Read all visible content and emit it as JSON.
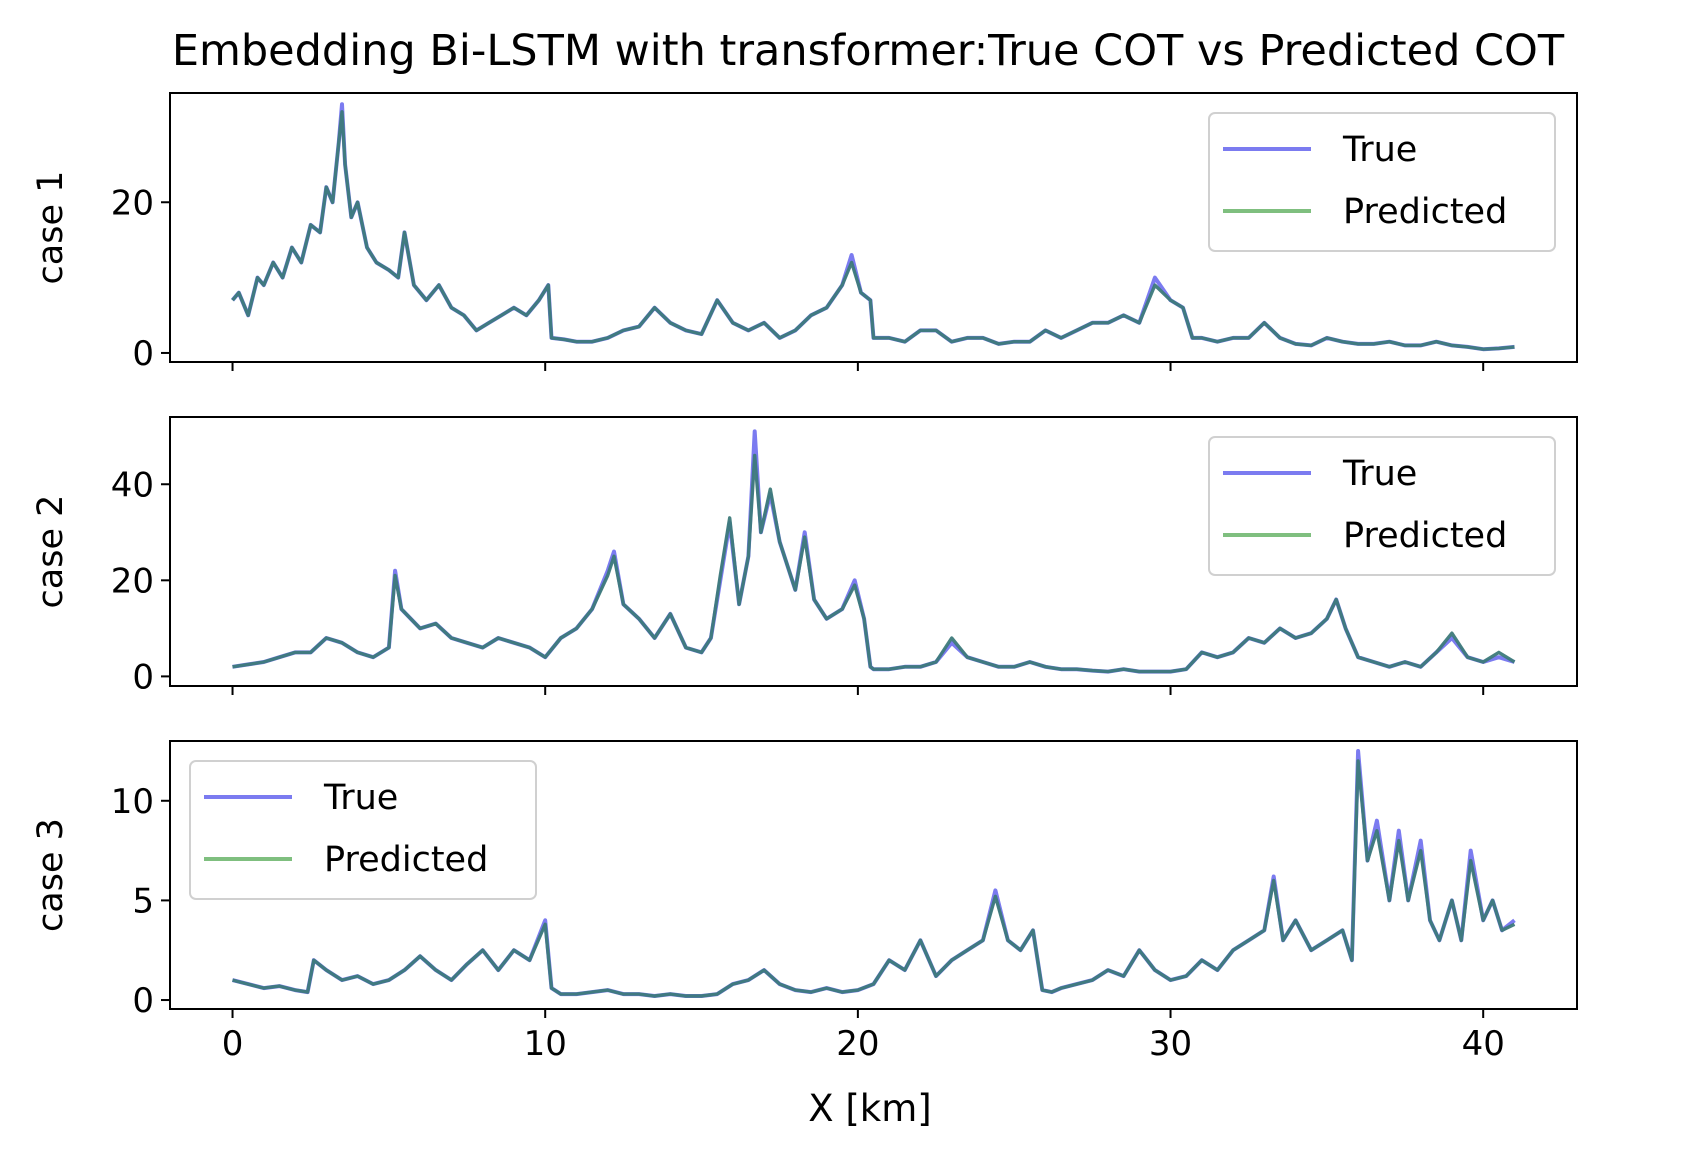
{
  "figure": {
    "title": "Embedding Bi-LSTM with transformer:True COT vs Predicted COT",
    "xlabel": "X [km]",
    "colors": {
      "true": "#7b7bf0",
      "predicted": "#7fbf7f",
      "overlap": "#3d7a7a"
    }
  },
  "chart_data": [
    {
      "type": "line",
      "ylabel": "case 1",
      "xlim": [
        -2,
        43
      ],
      "ylim": [
        -1.2,
        34.5
      ],
      "xticks": [
        0,
        10,
        20,
        30,
        40
      ],
      "yticks": [
        0,
        20
      ],
      "legend": {
        "position": "top-right",
        "entries": [
          "True",
          "Predicted"
        ]
      },
      "x": [
        0,
        0.2,
        0.5,
        0.8,
        1.0,
        1.3,
        1.6,
        1.9,
        2.2,
        2.5,
        2.8,
        3.0,
        3.2,
        3.4,
        3.5,
        3.6,
        3.8,
        4.0,
        4.3,
        4.6,
        5.0,
        5.3,
        5.5,
        5.8,
        6.2,
        6.6,
        7.0,
        7.4,
        7.8,
        8.2,
        8.6,
        9.0,
        9.4,
        9.8,
        10.1,
        10.2,
        10.6,
        11.0,
        11.5,
        12.0,
        12.5,
        13.0,
        13.5,
        14.0,
        14.5,
        15.0,
        15.5,
        16.0,
        16.5,
        17.0,
        17.5,
        18.0,
        18.5,
        19.0,
        19.5,
        19.8,
        20.1,
        20.4,
        20.5,
        21.0,
        21.5,
        22.0,
        22.5,
        23.0,
        23.5,
        24.0,
        24.5,
        25.0,
        25.5,
        26.0,
        26.5,
        27.0,
        27.5,
        28.0,
        28.5,
        29.0,
        29.5,
        30.0,
        30.4,
        30.7,
        31.0,
        31.5,
        32.0,
        32.5,
        33.0,
        33.5,
        34.0,
        34.5,
        35.0,
        35.5,
        36.0,
        36.5,
        37.0,
        37.5,
        38.0,
        38.5,
        39.0,
        39.5,
        40.0,
        40.5,
        41.0
      ],
      "series": [
        {
          "name": "True",
          "values": [
            7,
            8,
            5,
            10,
            9,
            12,
            10,
            14,
            12,
            17,
            16,
            22,
            20,
            28,
            33,
            25,
            18,
            20,
            14,
            12,
            11,
            10,
            16,
            9,
            7,
            9,
            6,
            5,
            3,
            4,
            5,
            6,
            5,
            7,
            9,
            2,
            1.8,
            1.5,
            1.5,
            2,
            3,
            3.5,
            6,
            4,
            3,
            2.5,
            7,
            4,
            3,
            4,
            2,
            3,
            5,
            6,
            9,
            13,
            8,
            7,
            2,
            2,
            1.5,
            3,
            3,
            1.5,
            2,
            2,
            1.2,
            1.5,
            1.5,
            3,
            2,
            3,
            4,
            4,
            5,
            4,
            10,
            7,
            6,
            2,
            2,
            1.5,
            2,
            2,
            4,
            2,
            1.2,
            1,
            2,
            1.5,
            1.2,
            1.2,
            1.5,
            1,
            1,
            1.5,
            1,
            0.8,
            0.5,
            0.6,
            0.8
          ]
        },
        {
          "name": "Predicted",
          "values": [
            7,
            8,
            5,
            10,
            9,
            12,
            10,
            14,
            12,
            17,
            16,
            22,
            20,
            28,
            32,
            25,
            18,
            20,
            14,
            12,
            11,
            10,
            16,
            9,
            7,
            9,
            6,
            5,
            3,
            4,
            5,
            6,
            5,
            7,
            9,
            2,
            1.8,
            1.5,
            1.5,
            2,
            3,
            3.5,
            6,
            4,
            3,
            2.5,
            7,
            4,
            3,
            4,
            2,
            3,
            5,
            6,
            9,
            12,
            8,
            7,
            2,
            2,
            1.5,
            3,
            3,
            1.5,
            2,
            2,
            1.2,
            1.5,
            1.5,
            3,
            2,
            3,
            4,
            4,
            5,
            4,
            9,
            7,
            6,
            2,
            2,
            1.5,
            2,
            2,
            4,
            2,
            1.2,
            1,
            2,
            1.5,
            1.2,
            1.2,
            1.5,
            1,
            1,
            1.5,
            1,
            0.8,
            0.5,
            0.6,
            0.8
          ]
        }
      ]
    },
    {
      "type": "line",
      "ylabel": "case 2",
      "xlim": [
        -2,
        43
      ],
      "ylim": [
        -2.0,
        54.0
      ],
      "xticks": [
        0,
        10,
        20,
        30,
        40
      ],
      "yticks": [
        0,
        20,
        40
      ],
      "legend": {
        "position": "top-right",
        "entries": [
          "True",
          "Predicted"
        ]
      },
      "x": [
        0,
        0.5,
        1.0,
        1.5,
        2.0,
        2.5,
        3.0,
        3.5,
        4.0,
        4.5,
        5.0,
        5.2,
        5.4,
        5.7,
        6.0,
        6.5,
        7.0,
        7.5,
        8.0,
        8.5,
        9.0,
        9.5,
        10.0,
        10.5,
        11.0,
        11.5,
        12.0,
        12.2,
        12.5,
        13.0,
        13.5,
        14.0,
        14.5,
        15.0,
        15.3,
        15.6,
        15.9,
        16.2,
        16.5,
        16.7,
        16.9,
        17.2,
        17.5,
        17.8,
        18.0,
        18.3,
        18.6,
        19.0,
        19.5,
        19.9,
        20.2,
        20.4,
        20.5,
        21.0,
        21.5,
        22.0,
        22.5,
        23.0,
        23.5,
        24.0,
        24.5,
        25.0,
        25.5,
        26.0,
        26.5,
        27.0,
        27.5,
        28.0,
        28.5,
        29.0,
        29.5,
        30.0,
        30.5,
        31.0,
        31.5,
        32.0,
        32.5,
        33.0,
        33.5,
        34.0,
        34.5,
        35.0,
        35.3,
        35.6,
        36.0,
        36.5,
        37.0,
        37.5,
        38.0,
        38.5,
        39.0,
        39.5,
        40.0,
        40.5,
        41.0
      ],
      "series": [
        {
          "name": "True",
          "values": [
            2,
            2.5,
            3,
            4,
            5,
            5,
            8,
            7,
            5,
            4,
            6,
            22,
            14,
            12,
            10,
            11,
            8,
            7,
            6,
            8,
            7,
            6,
            4,
            8,
            10,
            14,
            22,
            26,
            15,
            12,
            8,
            13,
            6,
            5,
            8,
            20,
            32,
            15,
            25,
            51,
            30,
            38,
            28,
            22,
            18,
            30,
            16,
            12,
            14,
            20,
            12,
            2,
            1.5,
            1.5,
            2,
            2,
            3,
            7,
            4,
            3,
            2,
            2,
            3,
            2,
            1.5,
            1.5,
            1.2,
            1,
            1.5,
            1,
            1,
            1,
            1.5,
            5,
            4,
            5,
            8,
            7,
            10,
            8,
            9,
            12,
            16,
            10,
            4,
            3,
            2,
            3,
            2,
            5,
            8,
            4,
            3,
            4,
            3
          ]
        },
        {
          "name": "Predicted",
          "values": [
            2,
            2.5,
            3,
            4,
            5,
            5,
            8,
            7,
            5,
            4,
            6,
            21,
            14,
            12,
            10,
            11,
            8,
            7,
            6,
            8,
            7,
            6,
            4,
            8,
            10,
            14,
            21,
            25,
            15,
            12,
            8,
            13,
            6,
            5,
            8,
            21,
            33,
            15,
            25,
            46,
            30,
            39,
            28,
            22,
            18,
            29,
            16,
            12,
            14,
            19,
            12,
            2,
            1.5,
            1.5,
            2,
            2,
            3,
            8,
            4,
            3,
            2,
            2,
            3,
            2,
            1.5,
            1.5,
            1.2,
            1,
            1.5,
            1,
            1,
            1,
            1.5,
            5,
            4,
            5,
            8,
            7,
            10,
            8,
            9,
            12,
            16,
            10,
            4,
            3,
            2,
            3,
            2,
            5,
            9,
            4,
            3,
            5,
            3
          ]
        }
      ]
    },
    {
      "type": "line",
      "ylabel": "case 3",
      "xlim": [
        -2,
        43
      ],
      "ylim": [
        -0.45,
        13.0
      ],
      "xticks": [
        0,
        10,
        20,
        30,
        40
      ],
      "yticks": [
        0,
        5,
        10
      ],
      "legend": {
        "position": "top-left",
        "entries": [
          "True",
          "Predicted"
        ]
      },
      "x": [
        0,
        0.5,
        1.0,
        1.5,
        2.0,
        2.4,
        2.6,
        3.0,
        3.5,
        4.0,
        4.5,
        5.0,
        5.5,
        6.0,
        6.5,
        7.0,
        7.5,
        8.0,
        8.5,
        9.0,
        9.5,
        10.0,
        10.2,
        10.5,
        11.0,
        11.5,
        12.0,
        12.5,
        13.0,
        13.5,
        14.0,
        14.5,
        15.0,
        15.5,
        16.0,
        16.5,
        17.0,
        17.5,
        18.0,
        18.5,
        19.0,
        19.5,
        20.0,
        20.5,
        21.0,
        21.5,
        22.0,
        22.5,
        23.0,
        23.5,
        24.0,
        24.4,
        24.8,
        25.2,
        25.6,
        25.9,
        26.2,
        26.5,
        27.0,
        27.5,
        28.0,
        28.5,
        29.0,
        29.5,
        30.0,
        30.5,
        31.0,
        31.5,
        32.0,
        32.5,
        33.0,
        33.3,
        33.6,
        34.0,
        34.5,
        35.0,
        35.5,
        35.8,
        36.0,
        36.3,
        36.6,
        37.0,
        37.3,
        37.6,
        38.0,
        38.3,
        38.6,
        39.0,
        39.3,
        39.6,
        40.0,
        40.3,
        40.6,
        41.0
      ],
      "series": [
        {
          "name": "True",
          "values": [
            1,
            0.8,
            0.6,
            0.7,
            0.5,
            0.4,
            2,
            1.5,
            1,
            1.2,
            0.8,
            1,
            1.5,
            2.2,
            1.5,
            1,
            1.8,
            2.5,
            1.5,
            2.5,
            2,
            4,
            0.6,
            0.3,
            0.3,
            0.4,
            0.5,
            0.3,
            0.3,
            0.2,
            0.3,
            0.2,
            0.2,
            0.3,
            0.8,
            1,
            1.5,
            0.8,
            0.5,
            0.4,
            0.6,
            0.4,
            0.5,
            0.8,
            2,
            1.5,
            3,
            1.2,
            2,
            2.5,
            3,
            5.5,
            3,
            2.5,
            3.5,
            0.5,
            0.4,
            0.6,
            0.8,
            1,
            1.5,
            1.2,
            2.5,
            1.5,
            1,
            1.2,
            2,
            1.5,
            2.5,
            3,
            3.5,
            6.2,
            3,
            4,
            2.5,
            3,
            3.5,
            2,
            12.5,
            7,
            9,
            5,
            8.5,
            5,
            8,
            4,
            3,
            5,
            3,
            7.5,
            4,
            5,
            3.5,
            4
          ]
        },
        {
          "name": "Predicted",
          "values": [
            1,
            0.8,
            0.6,
            0.7,
            0.5,
            0.4,
            2,
            1.5,
            1,
            1.2,
            0.8,
            1,
            1.5,
            2.2,
            1.5,
            1,
            1.8,
            2.5,
            1.5,
            2.5,
            2,
            3.8,
            0.6,
            0.3,
            0.3,
            0.4,
            0.5,
            0.3,
            0.3,
            0.2,
            0.3,
            0.2,
            0.2,
            0.3,
            0.8,
            1,
            1.5,
            0.8,
            0.5,
            0.4,
            0.6,
            0.4,
            0.5,
            0.8,
            2,
            1.5,
            3,
            1.2,
            2,
            2.5,
            3,
            5.2,
            3,
            2.5,
            3.5,
            0.5,
            0.4,
            0.6,
            0.8,
            1,
            1.5,
            1.2,
            2.5,
            1.5,
            1,
            1.2,
            2,
            1.5,
            2.5,
            3,
            3.5,
            6,
            3,
            4,
            2.5,
            3,
            3.5,
            2,
            12,
            7,
            8.5,
            5,
            8,
            5,
            7.5,
            4,
            3,
            5,
            3,
            7,
            4,
            5,
            3.5,
            3.8
          ]
        }
      ]
    }
  ]
}
